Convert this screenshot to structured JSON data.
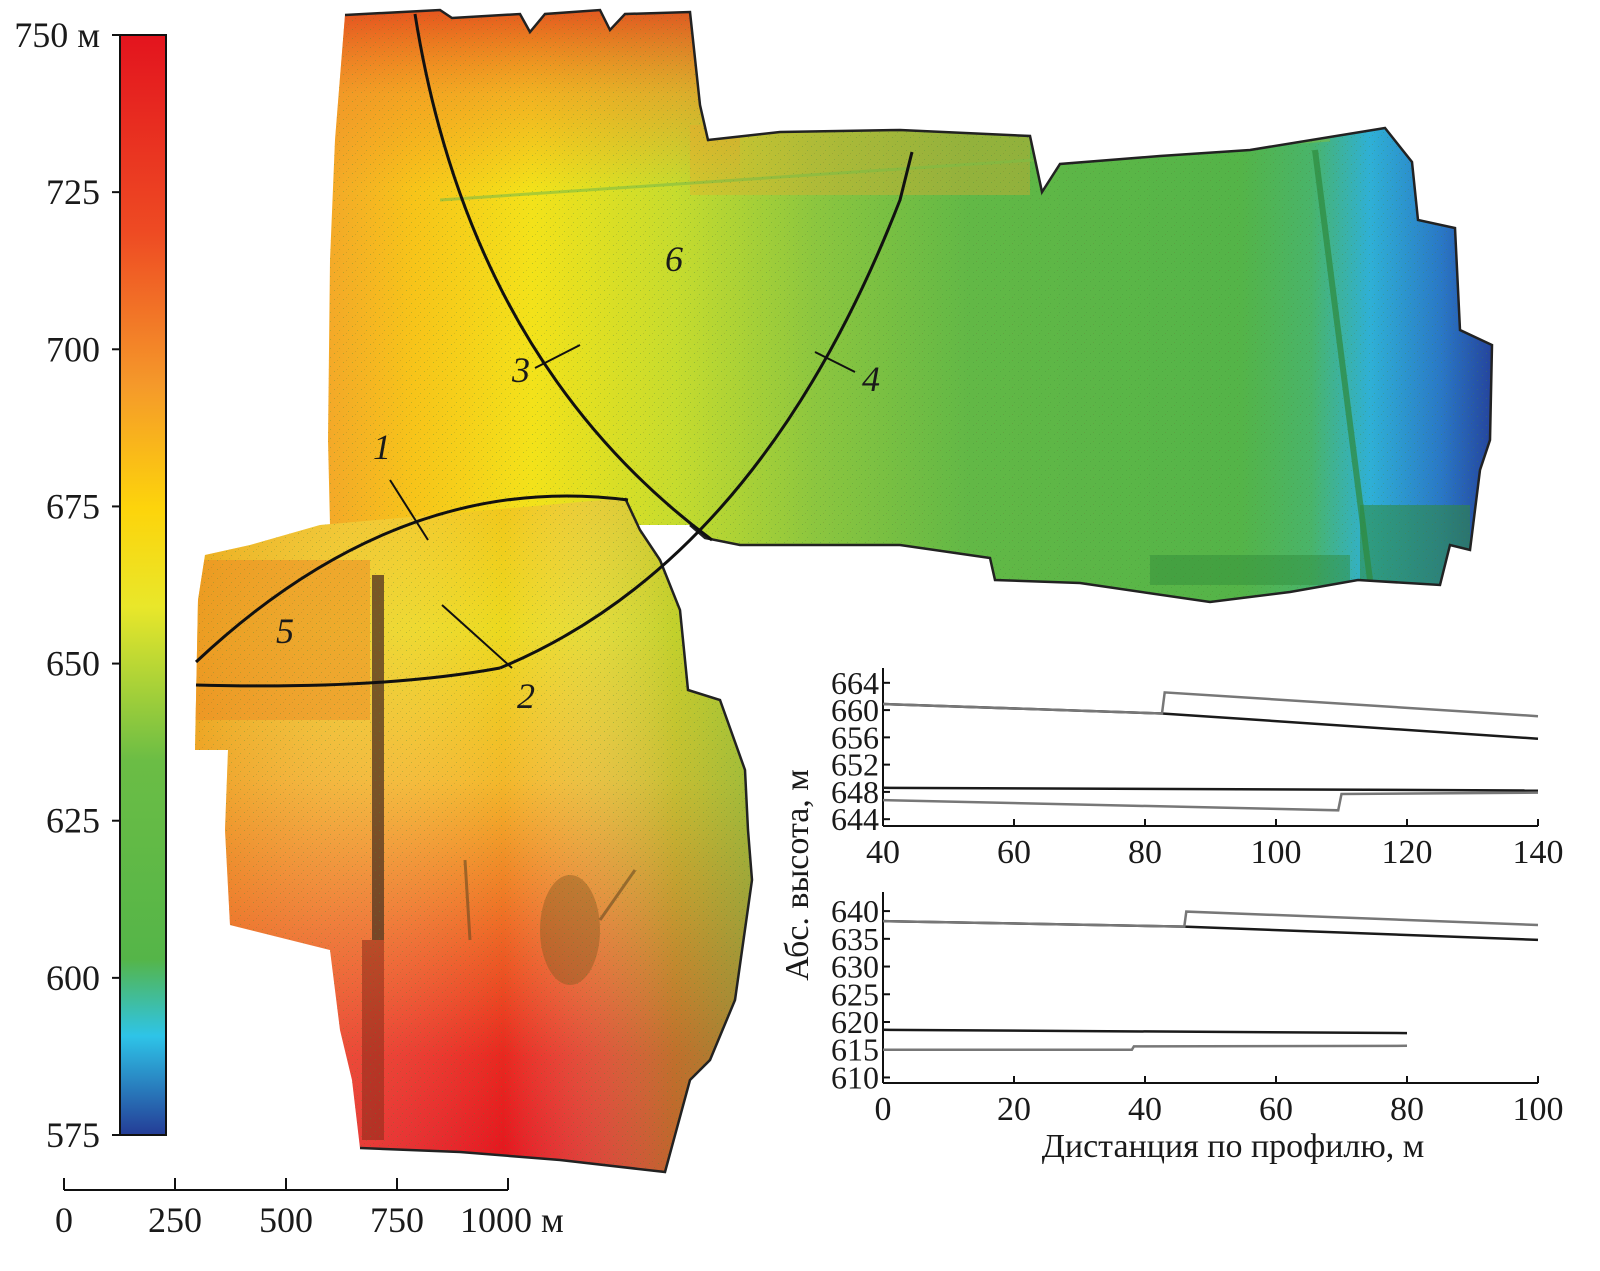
{
  "colorbar": {
    "ticks": [
      750,
      725,
      700,
      675,
      650,
      625,
      600,
      575
    ],
    "unit": "м",
    "min": 575,
    "max": 750
  },
  "scalebar": {
    "ticks": [
      0,
      250,
      500,
      750,
      1000
    ],
    "unit": "м"
  },
  "map_labels": [
    "1",
    "2",
    "3",
    "4",
    "5",
    "6"
  ],
  "chart_data": [
    {
      "type": "line",
      "title": "",
      "xlabel": "",
      "ylabel": "Абс. высота, м",
      "xlim": [
        40,
        140
      ],
      "ylim": [
        643,
        665
      ],
      "xticks": [
        40,
        60,
        80,
        100,
        120,
        140
      ],
      "yticks": [
        644,
        648,
        652,
        656,
        660,
        664
      ],
      "series": [
        {
          "color": "#1a1a1a",
          "x": [
            40,
            82.6,
            140
          ],
          "y": [
            660.9,
            659.5,
            655.8
          ]
        },
        {
          "color": "#777777",
          "x": [
            40,
            82.6,
            83.0,
            140
          ],
          "y": [
            660.9,
            659.5,
            662.6,
            659.1
          ]
        },
        {
          "color": "#1a1a1a",
          "x": [
            40,
            140
          ],
          "y": [
            648.6,
            648.2
          ]
        },
        {
          "color": "#777777",
          "x": [
            40,
            109.5,
            110,
            140
          ],
          "y": [
            646.8,
            645.3,
            647.7,
            647.9
          ]
        }
      ]
    },
    {
      "type": "line",
      "title": "",
      "xlabel": "Дистанция по профилю, м",
      "ylabel": "",
      "xlim": [
        0,
        100
      ],
      "ylim": [
        609,
        642
      ],
      "xticks": [
        0,
        20,
        40,
        60,
        80,
        100
      ],
      "yticks": [
        610,
        615,
        620,
        625,
        630,
        635,
        640
      ],
      "series": [
        {
          "color": "#1a1a1a",
          "x": [
            0,
            46,
            100
          ],
          "y": [
            638.2,
            637.2,
            634.8
          ]
        },
        {
          "color": "#777777",
          "x": [
            0,
            46,
            46.3,
            100
          ],
          "y": [
            638.2,
            637.2,
            639.9,
            637.5
          ]
        },
        {
          "color": "#1a1a1a",
          "x": [
            0,
            80
          ],
          "y": [
            618.6,
            618.0
          ]
        },
        {
          "color": "#777777",
          "x": [
            0,
            38,
            38.3,
            80
          ],
          "y": [
            615.0,
            615.0,
            615.6,
            615.7
          ]
        }
      ]
    }
  ]
}
